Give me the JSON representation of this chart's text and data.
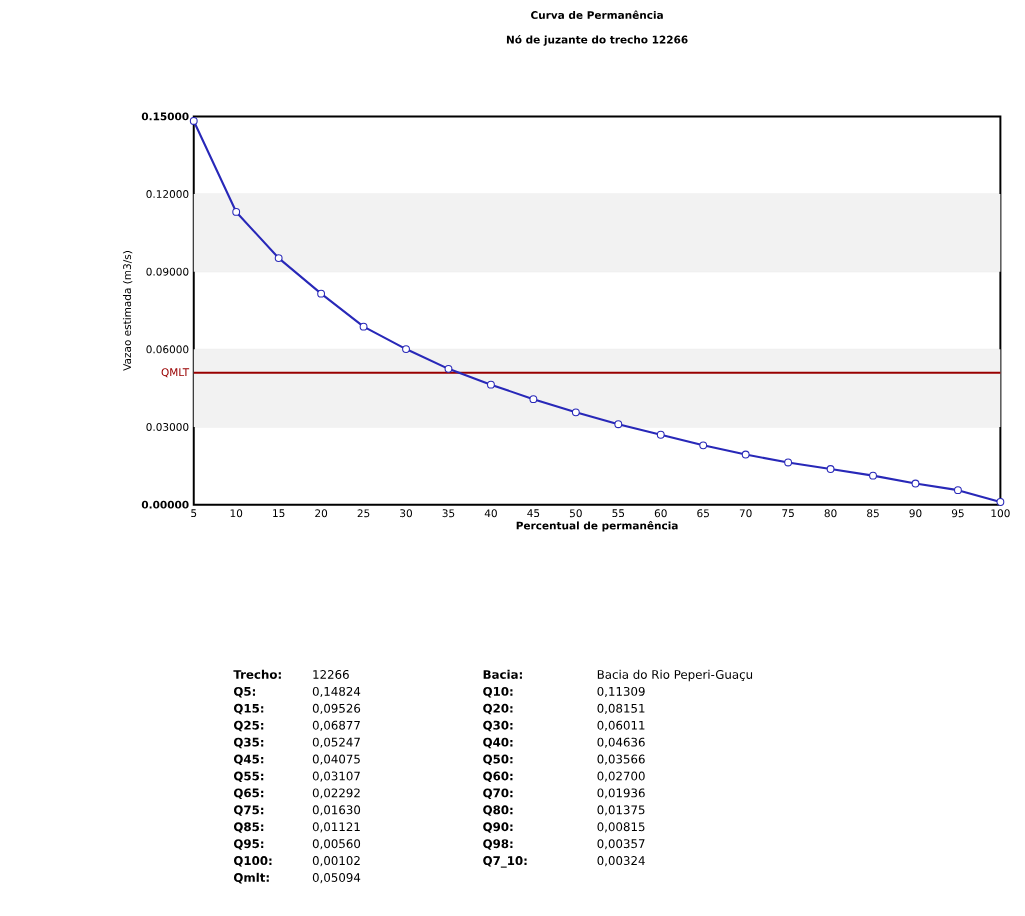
{
  "chart_data": {
    "type": "line",
    "title": "Curva de Permanência",
    "subtitle": "Nó de juzante do trecho 12266",
    "xlabel": "Percentual de permanência",
    "ylabel": "Vazao estimada (m3/s)",
    "x": [
      5,
      10,
      15,
      20,
      25,
      30,
      35,
      40,
      45,
      50,
      55,
      60,
      65,
      70,
      75,
      80,
      85,
      90,
      95,
      100
    ],
    "series": [
      {
        "color": "#2828b8",
        "values": [
          0.14824,
          0.11309,
          0.09526,
          0.08151,
          0.06877,
          0.06011,
          0.05247,
          0.04636,
          0.04075,
          0.03566,
          0.03107,
          0.027,
          0.02292,
          0.01936,
          0.0163,
          0.01375,
          0.01121,
          0.00815,
          0.0056,
          0.00102
        ]
      }
    ],
    "xlim": [
      5,
      100
    ],
    "xticks": [
      5,
      10,
      15,
      20,
      25,
      30,
      35,
      40,
      45,
      50,
      55,
      60,
      65,
      70,
      75,
      80,
      85,
      90,
      95,
      100
    ],
    "ylim": [
      0,
      0.15
    ],
    "yticks": [
      {
        "value": 0,
        "label": "**0.00000**"
      },
      {
        "value": 0.03,
        "label": "0.03000"
      },
      {
        "value": 0.06,
        "label": "0.06000"
      },
      {
        "value": 0.09,
        "label": "0.09000"
      },
      {
        "value": 0.12,
        "label": "0.12000"
      },
      {
        "value": 0.15,
        "label": "**0.15000**"
      }
    ],
    "grid": "y",
    "marker": "circle",
    "line_style": "solid",
    "ref_lines": [
      {
        "axis": "y",
        "value": 0.05094,
        "label": "QMLT",
        "color": "#990000"
      }
    ],
    "bands": [
      {
        "axis": "y",
        "from": 0.03,
        "to": 0.06,
        "color": "#f2f2f2"
      },
      {
        "axis": "y",
        "from": 0.09,
        "to": 0.12,
        "color": "#f2f2f2"
      }
    ],
    "annotations": [
      "Trecho:",
      "12266",
      "Bacia:",
      "Bacia do Rio Peperi-Guaçu",
      "Q5:",
      "0,14824",
      "Q10:",
      "0,11309",
      "Q15:",
      "0,09526",
      "Q20:",
      "0,08151",
      "Q25:",
      "0,06877",
      "Q30:",
      "0,06011",
      "Q35:",
      "0,05247",
      "Q40:",
      "0,04636",
      "Q45:",
      "0,04075",
      "Q50:",
      "0,03566",
      "Q55:",
      "0,03107",
      "Q60:",
      "0,02700",
      "Q65:",
      "0,02292",
      "Q70:",
      "0,01936",
      "Q75:",
      "0,01630",
      "Q80:",
      "0,01375",
      "Q85:",
      "0,01121",
      "Q90:",
      "0,00815",
      "Q95:",
      "0,00560",
      "Q98:",
      "0,00357",
      "Q100:",
      "0,00102",
      "Q7_10:",
      "0,00324",
      "Qmlt:",
      "0,05094"
    ]
  }
}
